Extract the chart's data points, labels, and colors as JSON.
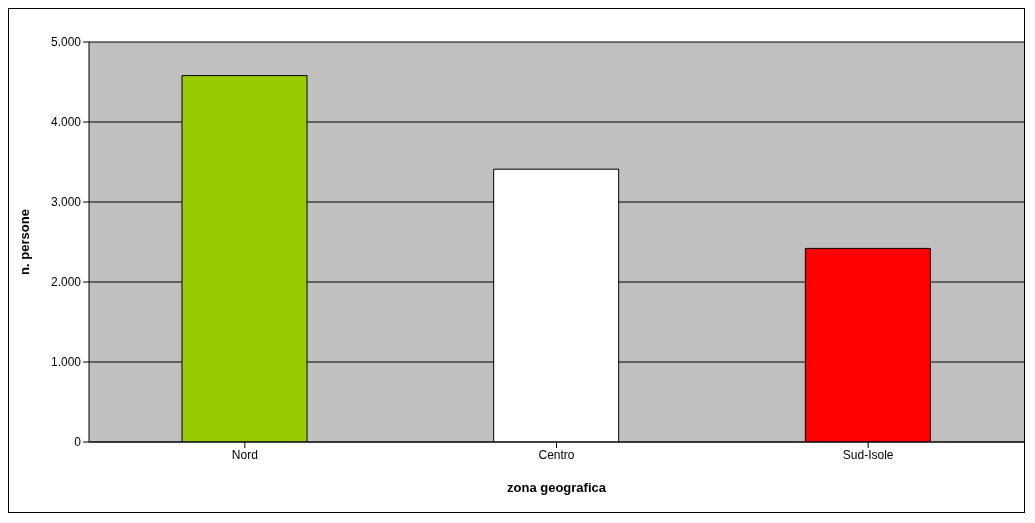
{
  "chart_data": {
    "type": "bar",
    "xlabel": "zona geografica",
    "ylabel": "n. persone",
    "categories": [
      "Nord",
      "Centro",
      "Sud-Isole"
    ],
    "values": [
      4580,
      3410,
      2420
    ],
    "colors": [
      "#99cc00",
      "#ffffff",
      "#ff0000"
    ],
    "ylim": [
      0,
      5000
    ],
    "yticks": [
      {
        "value": 0,
        "label": "0"
      },
      {
        "value": 1000,
        "label": "1.000"
      },
      {
        "value": 2000,
        "label": "2.000"
      },
      {
        "value": 3000,
        "label": "3.000"
      },
      {
        "value": 4000,
        "label": "4.000"
      },
      {
        "value": 5000,
        "label": "5.000"
      }
    ],
    "grid": "y",
    "legend": false
  }
}
